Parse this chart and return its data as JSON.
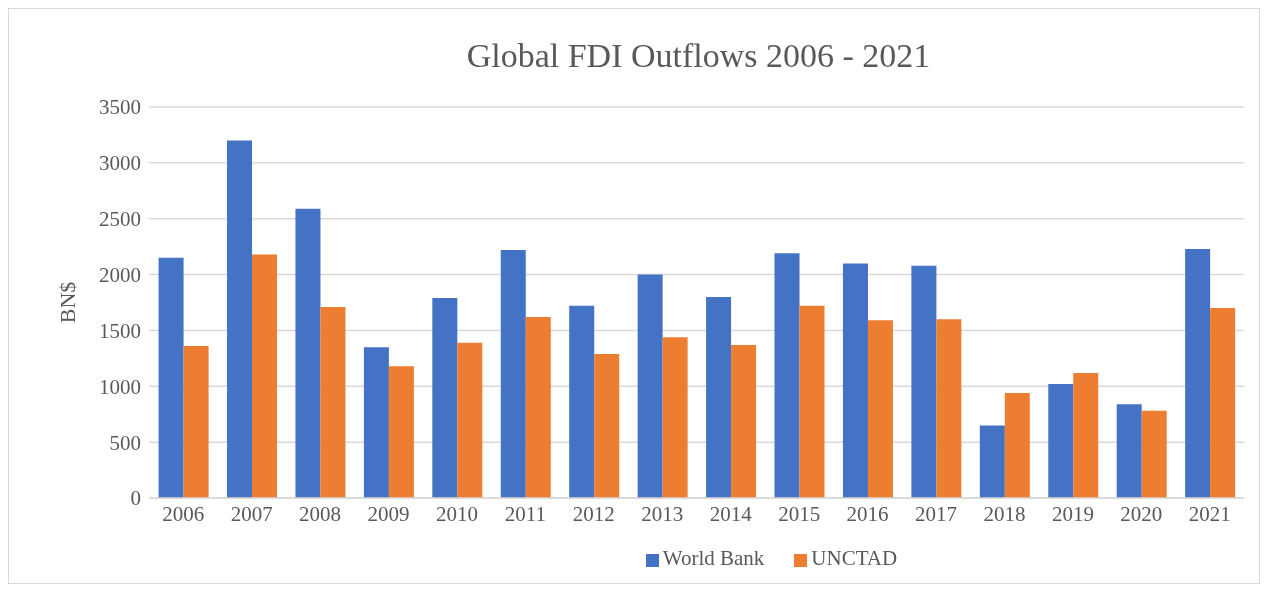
{
  "chart_data": {
    "type": "bar",
    "title": "Global FDI Outflows 2006 - 2021",
    "ylabel": "BN$",
    "categories": [
      "2006",
      "2007",
      "2008",
      "2009",
      "2010",
      "2011",
      "2012",
      "2013",
      "2014",
      "2015",
      "2016",
      "2017",
      "2018",
      "2019",
      "2020",
      "2021"
    ],
    "series": [
      {
        "name": "World Bank",
        "color": "#4472c4",
        "values": [
          2150,
          3200,
          2590,
          1350,
          1790,
          2220,
          1720,
          2000,
          1800,
          2190,
          2100,
          2080,
          650,
          1020,
          840,
          2230
        ]
      },
      {
        "name": "UNCTAD",
        "color": "#ed7d31",
        "values": [
          1360,
          2180,
          1710,
          1180,
          1390,
          1620,
          1290,
          1440,
          1370,
          1720,
          1590,
          1600,
          940,
          1120,
          780,
          1700
        ]
      }
    ],
    "ylim": [
      0,
      3500
    ],
    "yticks": [
      0,
      500,
      1000,
      1500,
      2000,
      2500,
      3000,
      3500
    ],
    "grid": "y",
    "legend": "bottom"
  }
}
